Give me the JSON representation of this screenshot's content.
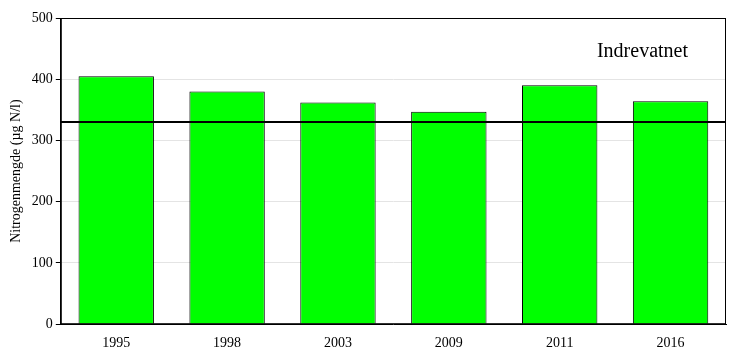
{
  "chart_data": {
    "type": "bar",
    "title": "Indrevatnet",
    "y_label": "Nitrogenmengde (µg N/l)",
    "categories": [
      "1995",
      "1998",
      "2003",
      "2009",
      "2011",
      "2016"
    ],
    "values": [
      405,
      380,
      362,
      347,
      390,
      364
    ],
    "color": "#00ff00",
    "ylim": [
      0,
      500
    ],
    "yticks": [
      0,
      100,
      200,
      300,
      400,
      500
    ],
    "grid": true,
    "threshold": 330
  }
}
